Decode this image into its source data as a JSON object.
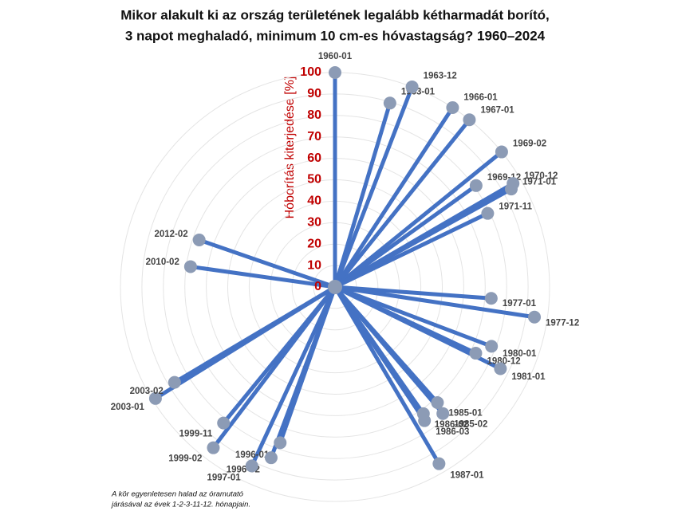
{
  "chart_data": {
    "type": "radial-lollipop",
    "title": [
      "Mikor alakult ki az ország területének legalább kétharmadát borító,",
      "3 napot meghaladó, minimum 10 cm-es hóvastagság? 1960–2024"
    ],
    "y_label": "Hóborítás kiterjedése [%]",
    "note": [
      "A kör egyenletesen halad az óramutató",
      "járásával az évek 1-2-3-11-12. hónapjain."
    ],
    "categories": [
      "1960-01",
      "1963-01",
      "1963-12",
      "1966-01",
      "1967-01",
      "1969-02",
      "1969-12",
      "1970-12",
      "1971-01",
      "1971-11",
      "1977-01",
      "1977-12",
      "1980-01",
      "1980-12",
      "1981-01",
      "1985-01",
      "1985-02",
      "1986-02",
      "1986-03",
      "1987-01",
      "1996-01",
      "1996-02",
      "1997-01",
      "1999-02",
      "1999-11",
      "2003-01",
      "2003-02",
      "2010-02",
      "2012-02"
    ],
    "values": [
      100,
      89.5,
      100,
      100,
      100,
      100,
      81,
      96,
      94,
      79,
      73,
      94,
      78,
      72.5,
      86,
      72,
      77.5,
      72,
      75,
      95.6,
      77,
      85,
      92,
      94,
      82,
      98.5,
      87,
      68,
      67
    ],
    "color": "#4472c4",
    "marker_color": "#8c9bb5",
    "tick_color": "#c00000",
    "ylim": [
      0,
      100
    ],
    "yticks": [
      0,
      10,
      20,
      30,
      40,
      50,
      60,
      70,
      80,
      90,
      100
    ],
    "grid": true
  }
}
